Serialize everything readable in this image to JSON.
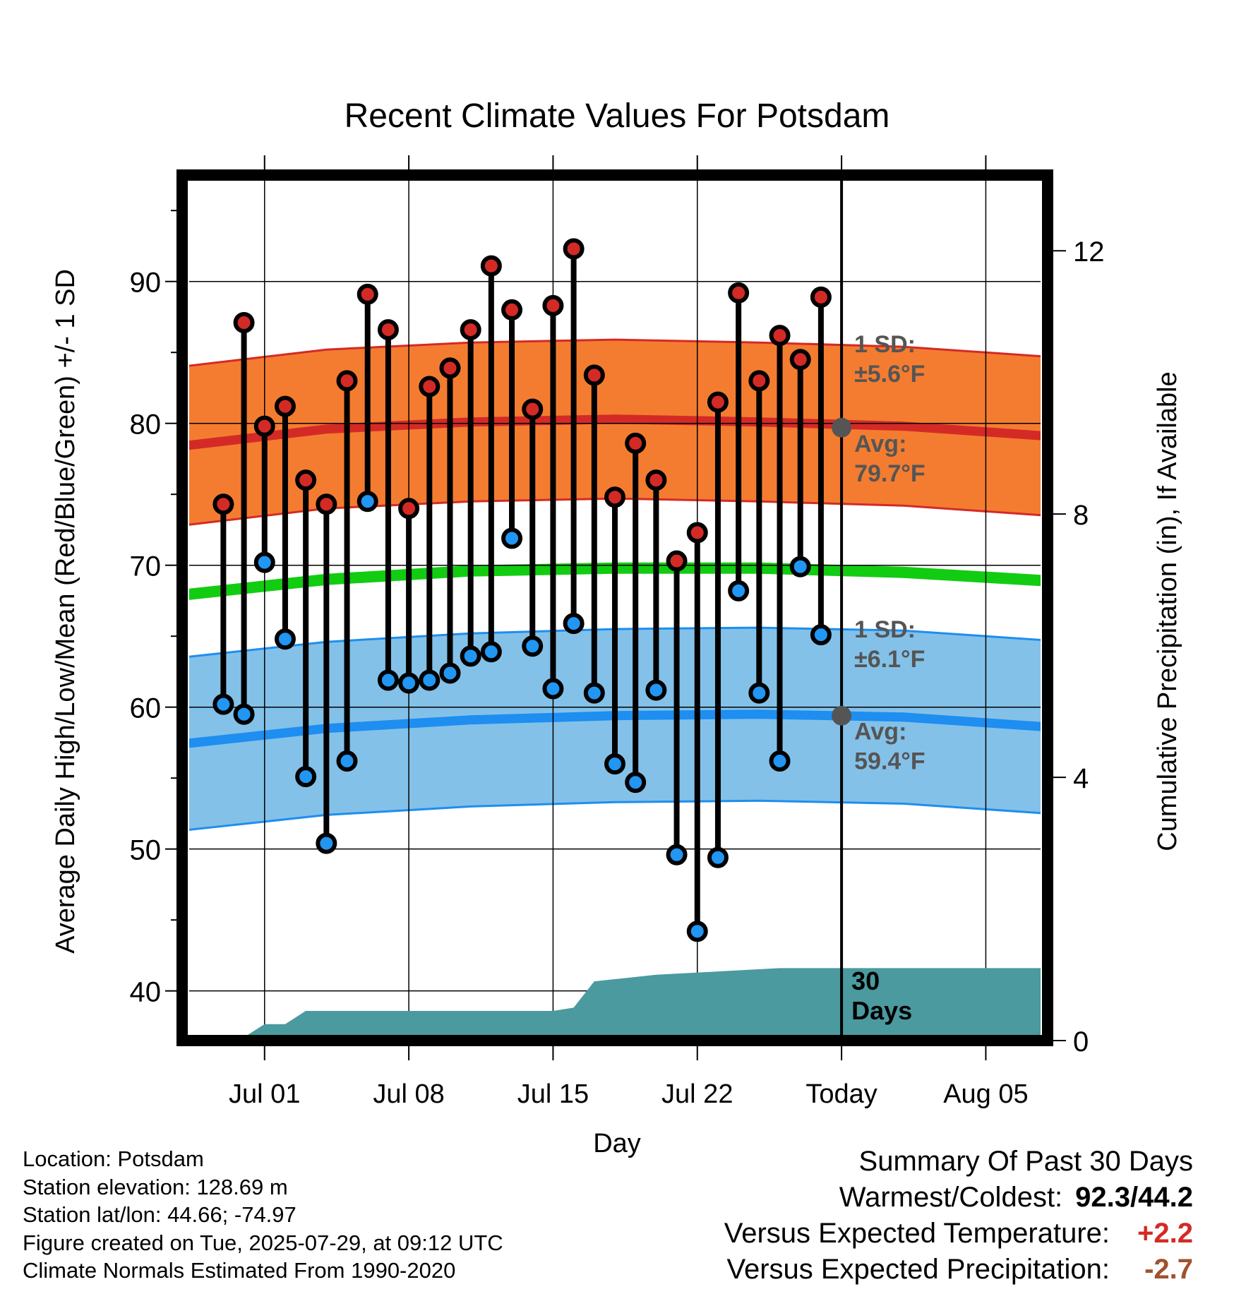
{
  "chart_data": {
    "type": "line",
    "title": "Recent Climate Values For Potsdam",
    "xlabel": "Day",
    "ylabel": "Average Daily High/Low/Mean (Red/Blue/Green) +/- 1 SD",
    "y2label": "Cumulative Precipitation (in), If Available",
    "ylim": [
      36.5,
      97.5
    ],
    "y2lim": [
      0,
      13.15
    ],
    "yticks": [
      40,
      50,
      60,
      70,
      80,
      90
    ],
    "y2ticks": [
      0,
      4,
      8,
      12
    ],
    "xlim": [
      "2025-06-27",
      "2025-08-08"
    ],
    "xticks": [
      {
        "date": "2025-07-01",
        "label": "Jul 01"
      },
      {
        "date": "2025-07-08",
        "label": "Jul 08"
      },
      {
        "date": "2025-07-15",
        "label": "Jul 15"
      },
      {
        "date": "2025-07-22",
        "label": "Jul 22"
      },
      {
        "date": "2025-07-29",
        "label": "Today"
      },
      {
        "date": "2025-08-05",
        "label": "Aug 05"
      }
    ],
    "grid": true,
    "today": "2025-07-29",
    "days_label": [
      "30",
      "Days"
    ],
    "daily_observations": [
      {
        "date": "2025-06-29",
        "high": 74.3,
        "low": 60.2
      },
      {
        "date": "2025-06-30",
        "high": 87.1,
        "low": 59.5
      },
      {
        "date": "2025-07-01",
        "high": 79.8,
        "low": 70.2
      },
      {
        "date": "2025-07-02",
        "high": 81.2,
        "low": 64.8
      },
      {
        "date": "2025-07-03",
        "high": 76.0,
        "low": 55.1
      },
      {
        "date": "2025-07-04",
        "high": 74.3,
        "low": 50.4
      },
      {
        "date": "2025-07-05",
        "high": 83.0,
        "low": 56.2
      },
      {
        "date": "2025-07-06",
        "high": 89.1,
        "low": 74.5
      },
      {
        "date": "2025-07-07",
        "high": 86.6,
        "low": 61.9
      },
      {
        "date": "2025-07-08",
        "high": 74.0,
        "low": 61.7
      },
      {
        "date": "2025-07-09",
        "high": 82.6,
        "low": 61.9
      },
      {
        "date": "2025-07-10",
        "high": 83.9,
        "low": 62.4
      },
      {
        "date": "2025-07-11",
        "high": 86.6,
        "low": 63.6
      },
      {
        "date": "2025-07-12",
        "high": 91.1,
        "low": 63.9
      },
      {
        "date": "2025-07-13",
        "high": 88.0,
        "low": 71.9
      },
      {
        "date": "2025-07-14",
        "high": 81.0,
        "low": 64.3
      },
      {
        "date": "2025-07-15",
        "high": 88.3,
        "low": 61.3
      },
      {
        "date": "2025-07-16",
        "high": 92.3,
        "low": 65.9
      },
      {
        "date": "2025-07-17",
        "high": 83.4,
        "low": 61.0
      },
      {
        "date": "2025-07-18",
        "high": 74.8,
        "low": 56.0
      },
      {
        "date": "2025-07-19",
        "high": 78.6,
        "low": 54.7
      },
      {
        "date": "2025-07-20",
        "high": 76.0,
        "low": 61.2
      },
      {
        "date": "2025-07-21",
        "high": 70.3,
        "low": 49.6
      },
      {
        "date": "2025-07-22",
        "high": 72.3,
        "low": 44.2
      },
      {
        "date": "2025-07-23",
        "high": 81.5,
        "low": 49.4
      },
      {
        "date": "2025-07-24",
        "high": 89.2,
        "low": 68.2
      },
      {
        "date": "2025-07-25",
        "high": 83.0,
        "low": 61.0
      },
      {
        "date": "2025-07-26",
        "high": 86.2,
        "low": 56.2
      },
      {
        "date": "2025-07-27",
        "high": 84.5,
        "low": 69.9
      },
      {
        "date": "2025-07-28",
        "high": 88.9,
        "low": 65.1
      }
    ],
    "normals": {
      "dates": [
        "2025-06-27",
        "2025-07-04",
        "2025-07-11",
        "2025-07-18",
        "2025-07-25",
        "2025-08-01",
        "2025-08-08"
      ],
      "avg_high": [
        78.4,
        79.6,
        80.1,
        80.3,
        80.1,
        79.8,
        79.1
      ],
      "avg_low": [
        57.4,
        58.5,
        59.1,
        59.4,
        59.5,
        59.3,
        58.6
      ],
      "avg_mean": [
        67.9,
        69.0,
        69.6,
        69.8,
        69.8,
        69.5,
        68.9
      ],
      "high_sd": 5.6,
      "low_sd": 6.1
    },
    "cumulative_precipitation": {
      "dates": [
        "2025-06-29",
        "2025-06-30",
        "2025-07-01",
        "2025-07-02",
        "2025-07-03",
        "2025-07-15",
        "2025-07-16",
        "2025-07-17",
        "2025-07-20",
        "2025-07-26",
        "2025-08-08"
      ],
      "values": [
        0.0,
        0.05,
        0.25,
        0.25,
        0.45,
        0.45,
        0.5,
        0.9,
        1.0,
        1.1,
        1.1
      ]
    },
    "annotations": [
      {
        "series": "high",
        "sd_label": "1 SD:",
        "sd_value": "±5.6°F",
        "avg_label": "Avg:",
        "avg_value": "79.7°F",
        "avg": 79.7
      },
      {
        "series": "low",
        "sd_label": "1 SD:",
        "sd_value": "±6.1°F",
        "avg_label": "Avg:",
        "avg_value": "59.4°F",
        "avg": 59.4
      }
    ],
    "colors": {
      "high_band": "#f47c30",
      "high_line": "#d42a26",
      "low_band": "#84c1e8",
      "low_line": "#1e8ef0",
      "mean_line": "#12cc12",
      "precip": "#4a9aa0",
      "high_marker": "#d42a26",
      "low_marker": "#2196f3",
      "annotation": "#555555"
    }
  },
  "info": {
    "location": "Location: Potsdam",
    "elevation": "Station elevation: 128.69 m",
    "latlon": "Station lat/lon: 44.66; -74.97",
    "created": "Figure created on Tue, 2025-07-29, at 09:12 UTC",
    "normals": "Climate Normals Estimated From 1990-2020"
  },
  "summary": {
    "title": "Summary Of Past 30 Days",
    "warmest_label": "Warmest/Coldest:",
    "warmest_value": "92.3/44.2",
    "temp_label": "Versus Expected Temperature:",
    "temp_value": "+2.2",
    "temp_color": "#d42a26",
    "precip_label": "Versus Expected Precipitation:",
    "precip_value": "-2.7",
    "precip_color": "#a0522d"
  }
}
